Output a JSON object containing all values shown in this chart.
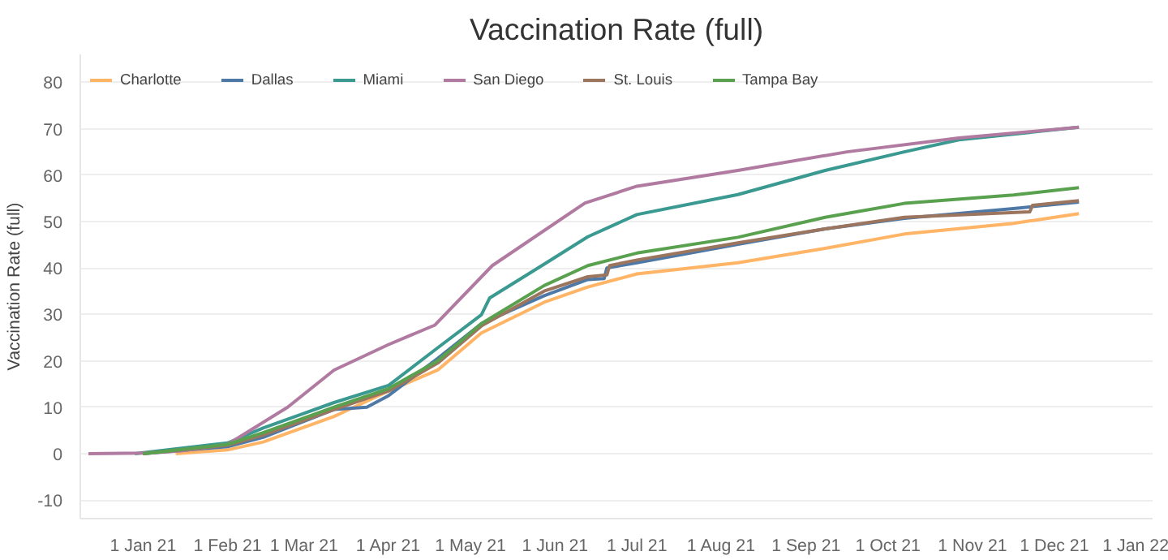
{
  "chart_data": {
    "type": "line",
    "title": "Vaccination Rate (full)",
    "ylabel": "Vaccination Rate (full)",
    "xlim": [
      "2020-12-09",
      "2022-01-06"
    ],
    "ylim": [
      -14,
      86
    ],
    "xticks": [
      {
        "value": "2021-01-01",
        "label": "1 Jan 21"
      },
      {
        "value": "2021-02-01",
        "label": "1 Feb 21"
      },
      {
        "value": "2021-03-01",
        "label": "1 Mar 21"
      },
      {
        "value": "2021-04-01",
        "label": "1 Apr 21"
      },
      {
        "value": "2021-05-01",
        "label": "1 May 21"
      },
      {
        "value": "2021-06-01",
        "label": "1 Jun 21"
      },
      {
        "value": "2021-07-01",
        "label": "1 Jul 21"
      },
      {
        "value": "2021-08-01",
        "label": "1 Aug 21"
      },
      {
        "value": "2021-09-01",
        "label": "1 Sep 21"
      },
      {
        "value": "2021-10-01",
        "label": "1 Oct 21"
      },
      {
        "value": "2021-11-01",
        "label": "1 Nov 21"
      },
      {
        "value": "2021-12-01",
        "label": "1 Dec 21"
      },
      {
        "value": "2022-01-01",
        "label": "1 Jan 22"
      }
    ],
    "yticks": [
      -10,
      0,
      10,
      20,
      30,
      40,
      50,
      60,
      70,
      80
    ],
    "grid": "y",
    "legend": "top",
    "line_style": "solid",
    "marker": "none",
    "series": [
      {
        "name": "Charlotte",
        "color": "#ffb466",
        "x": [
          "2021-01-13",
          "2021-02-01",
          "2021-02-14",
          "2021-03-12",
          "2021-04-01",
          "2021-04-19",
          "2021-05-05",
          "2021-05-28",
          "2021-06-13",
          "2021-07-01",
          "2021-08-07",
          "2021-09-08",
          "2021-10-07",
          "2021-11-16",
          "2021-12-10"
        ],
        "values": [
          0,
          0.8,
          2.5,
          8,
          13.5,
          18,
          26,
          32.6,
          35.9,
          38.7,
          41.1,
          44.2,
          47.3,
          49.6,
          51.7
        ]
      },
      {
        "name": "Dallas",
        "color": "#4e79a7",
        "x": [
          "2021-01-01",
          "2021-02-01",
          "2021-02-14",
          "2021-03-12",
          "2021-03-24",
          "2021-04-01",
          "2021-04-19",
          "2021-05-05",
          "2021-05-28",
          "2021-06-13",
          "2021-06-19",
          "2021-06-20",
          "2021-07-01",
          "2021-08-07",
          "2021-09-08",
          "2021-10-07",
          "2021-11-16",
          "2021-12-10"
        ],
        "values": [
          0,
          1.5,
          3.5,
          9.5,
          10,
          12.5,
          20.5,
          28,
          34,
          37.5,
          37.7,
          40,
          41.1,
          45.1,
          48.4,
          50.7,
          52.8,
          54.2
        ]
      },
      {
        "name": "Miami",
        "color": "#3a9990",
        "x": [
          "2020-12-29",
          "2021-02-01",
          "2021-02-14",
          "2021-03-12",
          "2021-04-01",
          "2021-04-19",
          "2021-05-05",
          "2021-05-08",
          "2021-05-28",
          "2021-06-13",
          "2021-07-01",
          "2021-08-07",
          "2021-09-08",
          "2021-10-07",
          "2021-10-27",
          "2021-12-10"
        ],
        "values": [
          0,
          2.3,
          5.5,
          11,
          14.7,
          22.8,
          29.9,
          33.5,
          40.8,
          46.7,
          51.5,
          55.8,
          61,
          65,
          67.6,
          70.3
        ]
      },
      {
        "name": "San Diego",
        "color": "#b07aa1",
        "x": [
          "2020-12-12",
          "2021-01-01",
          "2021-01-15",
          "2021-02-01",
          "2021-02-23",
          "2021-03-12",
          "2021-04-01",
          "2021-04-18",
          "2021-05-09",
          "2021-06-12",
          "2021-07-01",
          "2021-08-07",
          "2021-09-16",
          "2021-10-27",
          "2021-12-10"
        ],
        "values": [
          0,
          0.1,
          0.6,
          2,
          10,
          18,
          23.5,
          27.7,
          40.5,
          54,
          57.6,
          61,
          65,
          68,
          70.3
        ]
      },
      {
        "name": "St. Louis",
        "color": "#9c755f",
        "x": [
          "2021-01-01",
          "2021-02-01",
          "2021-02-14",
          "2021-03-12",
          "2021-04-01",
          "2021-04-19",
          "2021-05-05",
          "2021-05-28",
          "2021-06-13",
          "2021-06-20",
          "2021-06-21",
          "2021-07-01",
          "2021-08-07",
          "2021-09-08",
          "2021-10-07",
          "2021-11-22",
          "2021-11-23",
          "2021-12-10"
        ],
        "values": [
          0,
          1.8,
          4,
          9.5,
          13.5,
          19.5,
          27.5,
          35,
          38.1,
          38.5,
          40.5,
          41.7,
          45.4,
          48.4,
          50.9,
          52.1,
          53.5,
          54.5
        ]
      },
      {
        "name": "Tampa Bay",
        "color": "#59a14f",
        "x": [
          "2021-01-01",
          "2021-02-01",
          "2021-02-14",
          "2021-03-12",
          "2021-04-01",
          "2021-04-19",
          "2021-05-05",
          "2021-05-28",
          "2021-06-13",
          "2021-07-01",
          "2021-08-07",
          "2021-09-08",
          "2021-10-07",
          "2021-11-16",
          "2021-12-10"
        ],
        "values": [
          0,
          2,
          4.5,
          10,
          14,
          20,
          28,
          36.2,
          40.5,
          43.2,
          46.6,
          50.9,
          53.9,
          55.7,
          57.3
        ]
      }
    ]
  }
}
